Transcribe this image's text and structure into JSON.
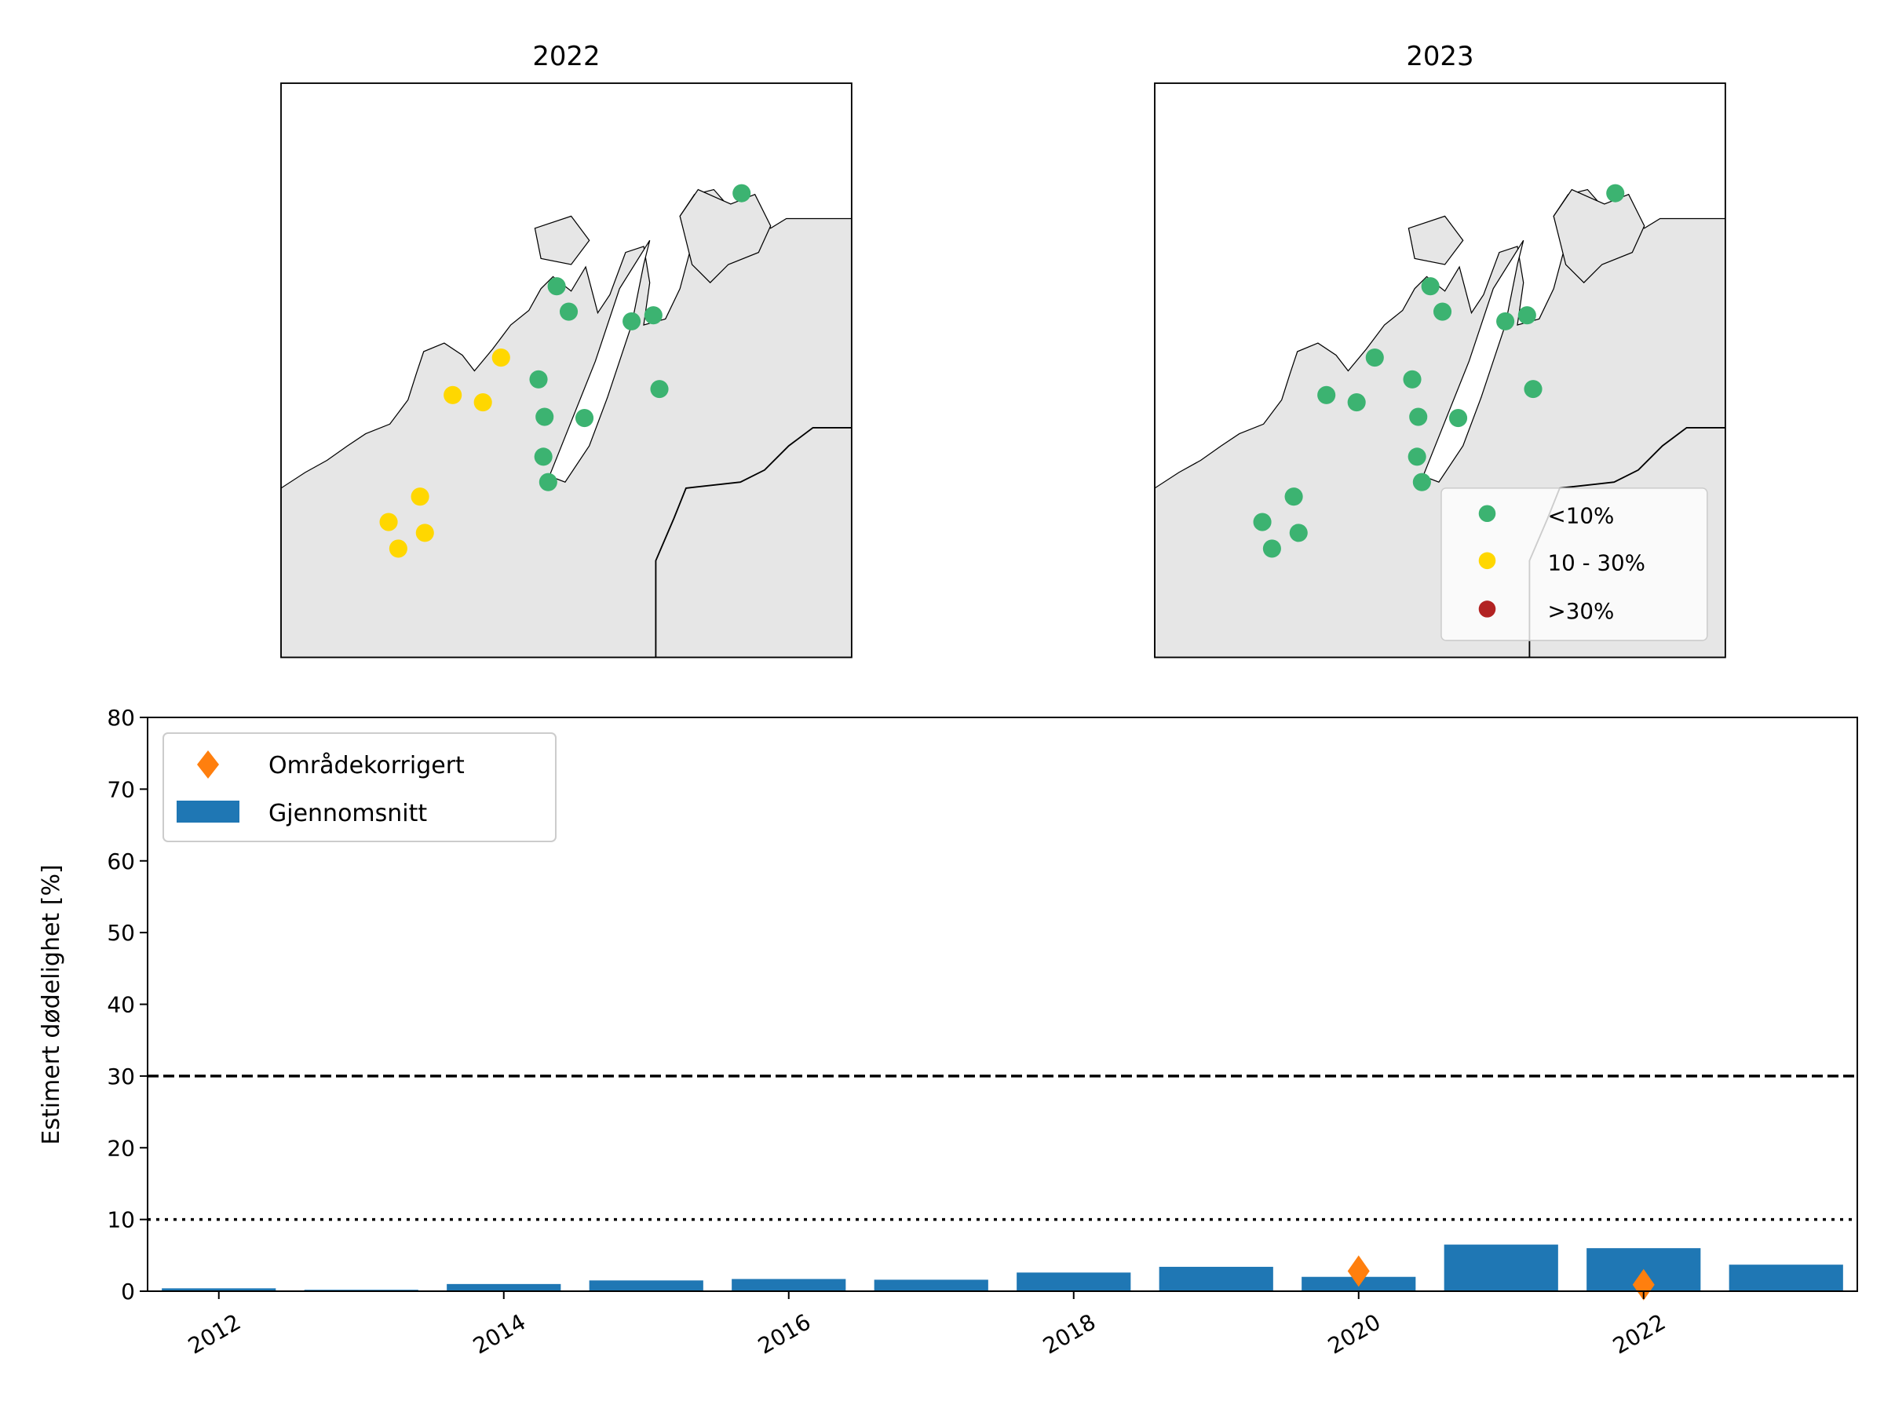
{
  "maps": [
    {
      "title": "2022",
      "sites": [
        "lt10",
        "lt10",
        "lt10",
        "lt10",
        "lt10",
        "lt10",
        "lt10",
        "lt10",
        "lt10",
        "lt10",
        "lt10",
        "10to30",
        "10to30",
        "10to30",
        "10to30",
        "10to30",
        "10to30",
        "10to30"
      ]
    },
    {
      "title": "2023",
      "sites": [
        "lt10",
        "lt10",
        "lt10",
        "lt10",
        "lt10",
        "lt10",
        "lt10",
        "lt10",
        "lt10",
        "lt10",
        "lt10",
        "lt10",
        "lt10",
        "lt10",
        "lt10",
        "lt10",
        "lt10",
        "lt10"
      ]
    }
  ],
  "map_legend": [
    {
      "key": "lt10",
      "label": "<10%",
      "color": "#3cb371"
    },
    {
      "key": "10to30",
      "label": "10 - 30%",
      "color": "#ffd700"
    },
    {
      "key": "gt30",
      "label": ">30%",
      "color": "#b22222"
    }
  ],
  "colors": {
    "land": "#e6e6e6",
    "bar": "#1f77b4",
    "marker": "#ff7f0e"
  },
  "chart_data": {
    "type": "bar",
    "xlabel": "",
    "ylabel": "Estimert dødelighet [%]",
    "ylim": [
      0,
      80
    ],
    "xlim": [
      2011.5,
      2023.5
    ],
    "yticks": [
      "0",
      "10",
      "20",
      "30",
      "40",
      "50",
      "60",
      "70",
      "80"
    ],
    "xticks": [
      "2012",
      "2014",
      "2016",
      "2018",
      "2020",
      "2022"
    ],
    "categories": [
      2012,
      2013,
      2014,
      2015,
      2016,
      2017,
      2018,
      2019,
      2020,
      2021,
      2022,
      2023
    ],
    "series": [
      {
        "name": "Gjennomsnitt",
        "kind": "bar",
        "values": [
          0.4,
          0.2,
          1.0,
          1.5,
          1.7,
          1.6,
          2.6,
          3.4,
          2.0,
          6.5,
          6.0,
          3.7
        ]
      },
      {
        "name": "Områdekorrigert",
        "kind": "marker",
        "x": [
          2020,
          2022
        ],
        "values": [
          2.8,
          0.9
        ]
      }
    ],
    "reference_lines": [
      {
        "y": 30,
        "style": "dashed"
      },
      {
        "y": 10,
        "style": "dotted"
      }
    ],
    "legend": {
      "placement": "top-left",
      "entries": [
        "Områdekorrigert",
        "Gjennomsnitt"
      ]
    }
  }
}
